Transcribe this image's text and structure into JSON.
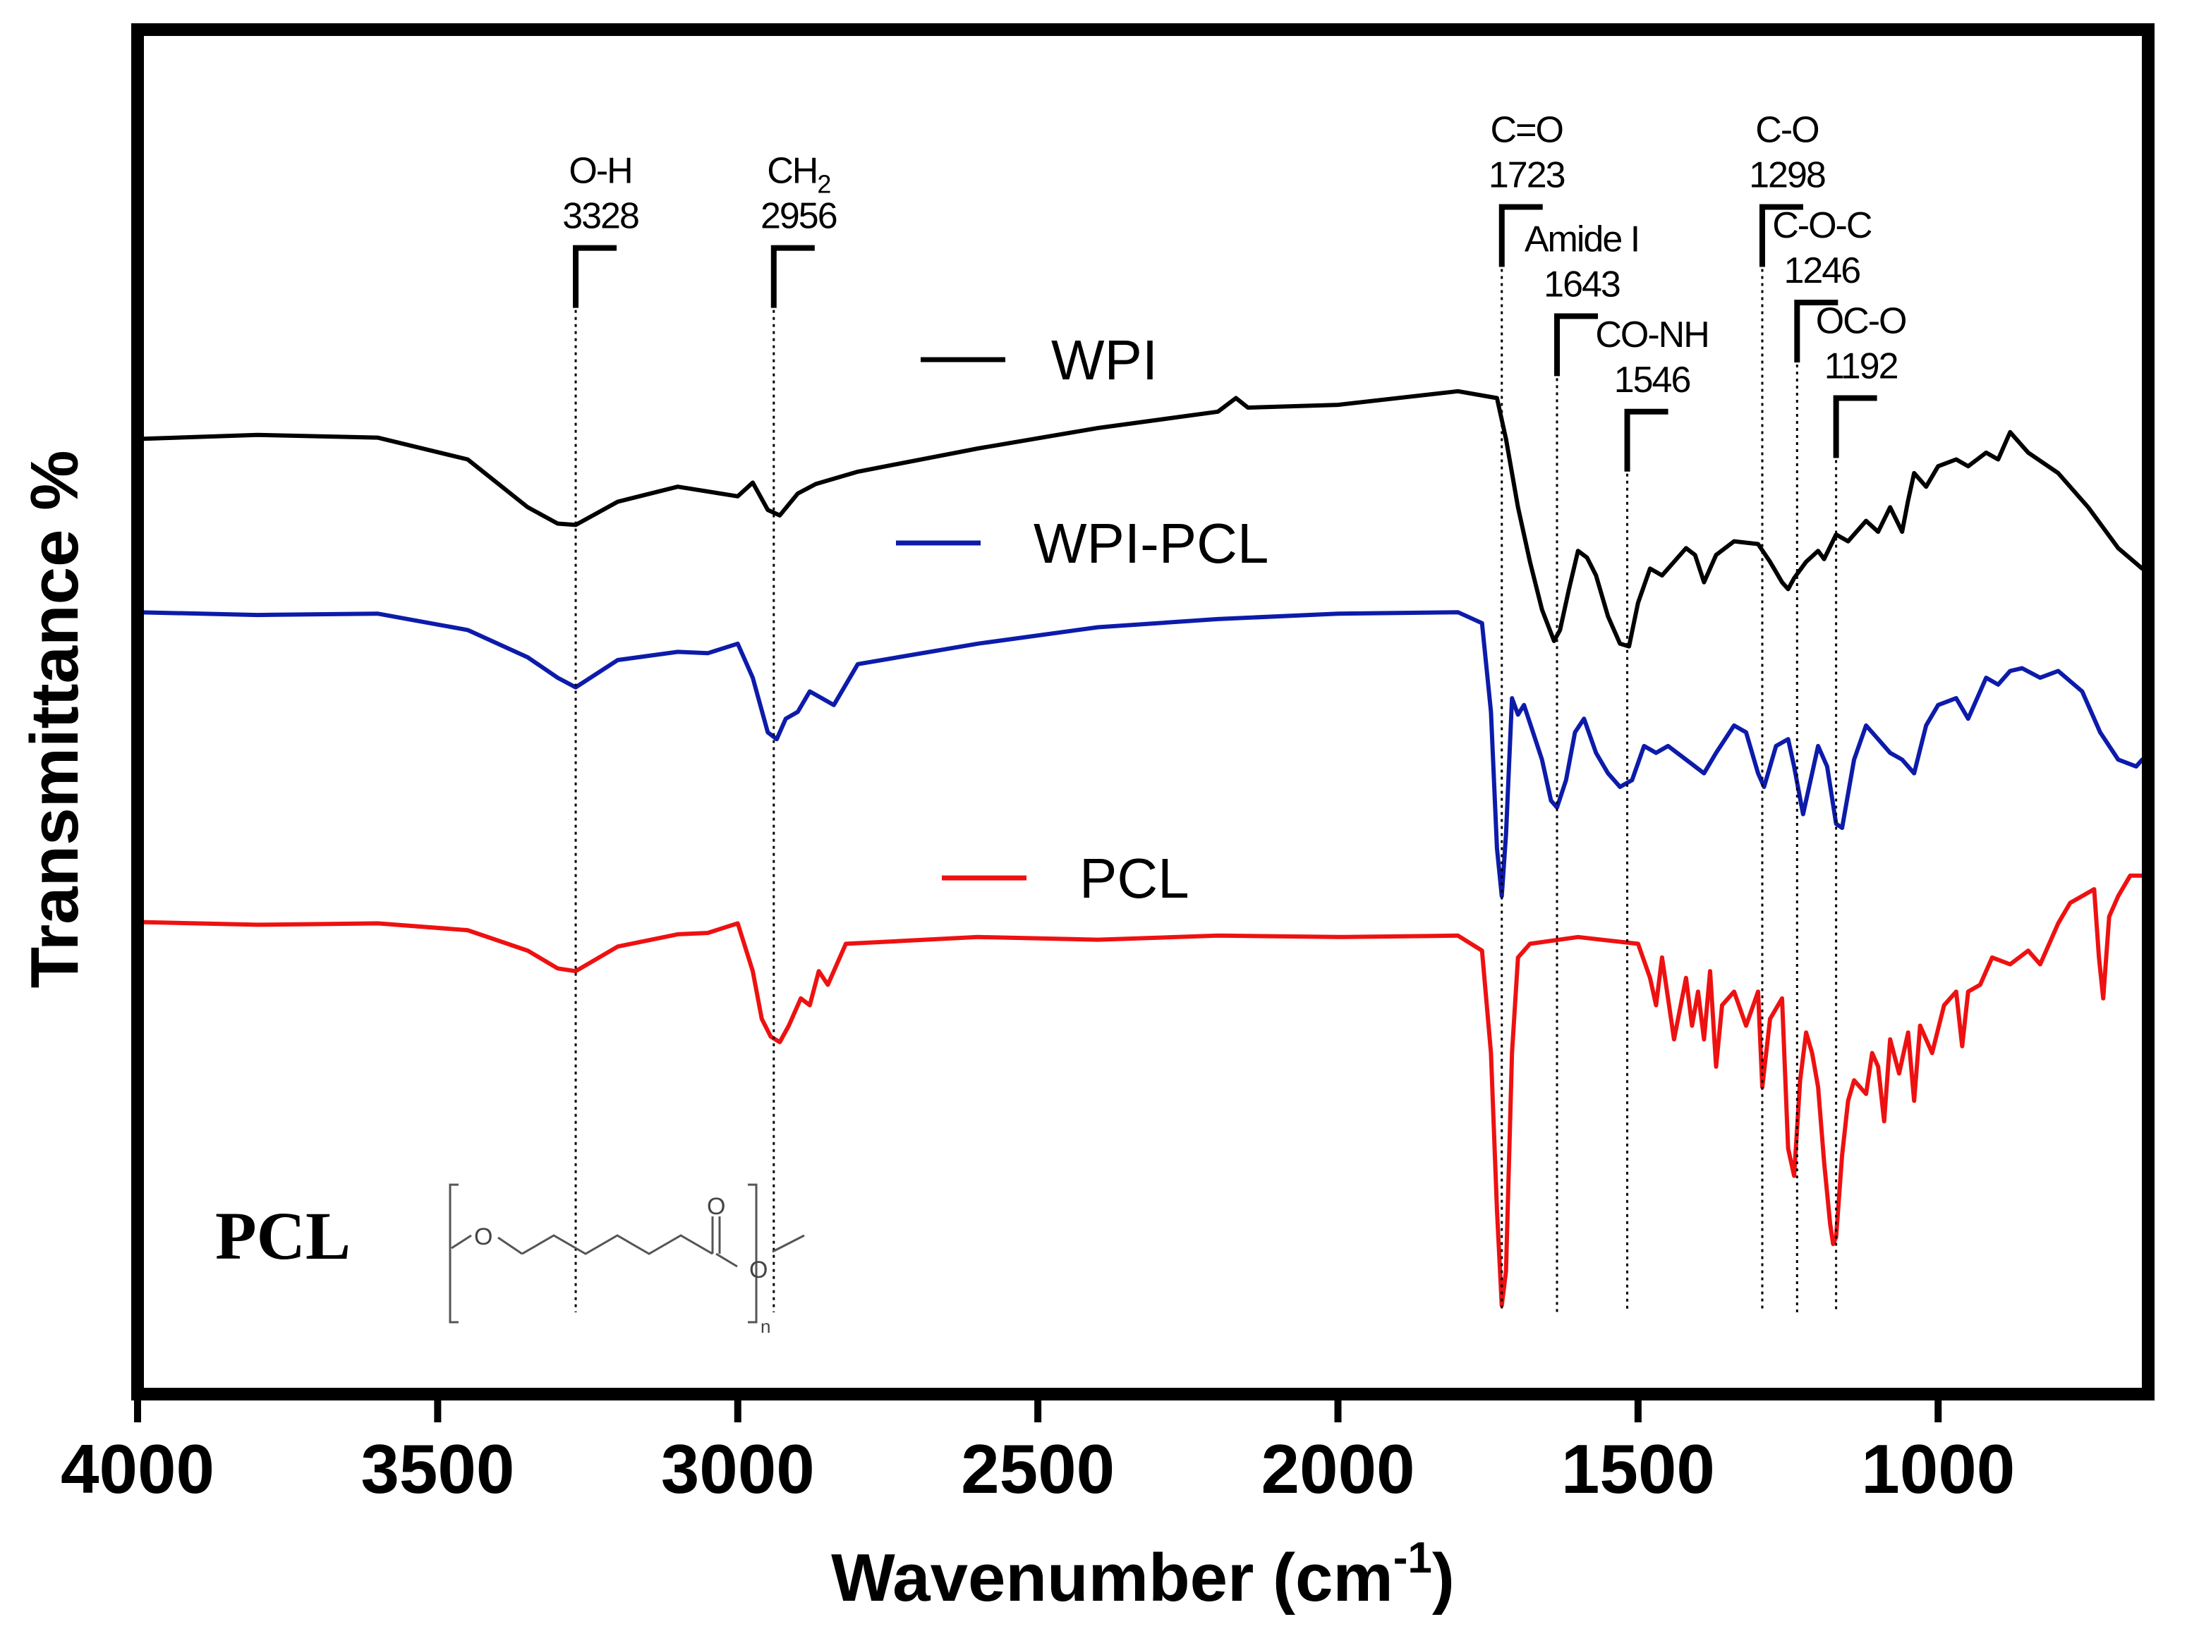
{
  "chart_data": {
    "type": "line",
    "xlabel": "Wavenumber (cm",
    "xlabel_sup": "-1",
    "xlabel_close": ")",
    "ylabel": "Transmittance %",
    "xlim": [
      4000,
      650
    ],
    "x_reversed": true,
    "ylim": [
      0,
      100
    ],
    "yticks_shown": false,
    "xticks": [
      {
        "value": 4000,
        "label": "4000"
      },
      {
        "value": 3500,
        "label": "3500"
      },
      {
        "value": 3000,
        "label": "3000"
      },
      {
        "value": 2500,
        "label": "2500"
      },
      {
        "value": 2000,
        "label": "2000"
      },
      {
        "value": 1500,
        "label": "1500"
      },
      {
        "value": 1000,
        "label": "1000"
      }
    ],
    "series": [
      {
        "name": "WPI",
        "color": "#000000",
        "x": [
          4000,
          3800,
          3600,
          3450,
          3350,
          3300,
          3270,
          3200,
          3100,
          3000,
          2975,
          2950,
          2930,
          2900,
          2870,
          2800,
          2600,
          2400,
          2200,
          2170,
          2150,
          2000,
          1800,
          1735,
          1720,
          1700,
          1680,
          1660,
          1640,
          1630,
          1615,
          1600,
          1585,
          1570,
          1550,
          1530,
          1515,
          1500,
          1480,
          1460,
          1440,
          1420,
          1405,
          1390,
          1370,
          1340,
          1300,
          1280,
          1260,
          1250,
          1240,
          1220,
          1200,
          1190,
          1170,
          1150,
          1120,
          1100,
          1080,
          1060,
          1050,
          1040,
          1020,
          1000,
          970,
          950,
          920,
          900,
          880,
          870,
          850,
          800,
          750,
          700,
          660
        ],
        "y": [
          70.0,
          70.3,
          70.1,
          68.5,
          65.0,
          63.8,
          63.7,
          65.4,
          66.5,
          65.8,
          66.8,
          64.8,
          64.4,
          66.0,
          66.7,
          67.6,
          69.3,
          70.8,
          72.0,
          73.0,
          72.3,
          72.5,
          73.5,
          73.0,
          70.0,
          65.0,
          61.0,
          57.5,
          55.2,
          56.0,
          59.0,
          61.8,
          61.3,
          60.0,
          57.0,
          55.0,
          54.8,
          58.0,
          60.5,
          60.0,
          61.0,
          62.0,
          61.5,
          59.5,
          61.5,
          62.5,
          62.3,
          61.0,
          59.5,
          59.0,
          59.8,
          61.0,
          61.8,
          61.2,
          63.0,
          62.5,
          64.0,
          63.2,
          65.0,
          63.2,
          65.5,
          67.5,
          66.5,
          68.0,
          68.5,
          68.0,
          69.0,
          68.5,
          70.5,
          70.0,
          69.0,
          67.5,
          65.0,
          62.0,
          60.5
        ]
      },
      {
        "name": "WPI-PCL",
        "color": "#0d1baa",
        "x": [
          4000,
          3800,
          3600,
          3450,
          3350,
          3300,
          3270,
          3200,
          3100,
          3050,
          3000,
          2975,
          2950,
          2935,
          2920,
          2900,
          2880,
          2860,
          2840,
          2800,
          2600,
          2400,
          2200,
          2000,
          1800,
          1760,
          1745,
          1735,
          1727,
          1720,
          1710,
          1700,
          1690,
          1675,
          1660,
          1645,
          1635,
          1620,
          1605,
          1590,
          1570,
          1550,
          1530,
          1510,
          1490,
          1470,
          1450,
          1420,
          1390,
          1370,
          1340,
          1320,
          1300,
          1290,
          1270,
          1250,
          1240,
          1225,
          1210,
          1200,
          1185,
          1170,
          1160,
          1140,
          1120,
          1100,
          1080,
          1060,
          1040,
          1020,
          1000,
          970,
          950,
          920,
          900,
          880,
          860,
          830,
          800,
          760,
          730,
          700,
          670,
          660
        ],
        "y": [
          57.3,
          57.1,
          57.2,
          56.0,
          54.0,
          52.5,
          51.8,
          53.8,
          54.4,
          54.3,
          55.0,
          52.5,
          48.5,
          48.0,
          49.5,
          50.0,
          51.5,
          51.0,
          50.5,
          53.5,
          55.0,
          56.2,
          56.8,
          57.2,
          57.3,
          56.5,
          50.0,
          40.0,
          36.5,
          41.0,
          51.0,
          49.8,
          50.5,
          48.5,
          46.5,
          43.5,
          43.0,
          45.0,
          48.5,
          49.5,
          47.0,
          45.5,
          44.5,
          45.0,
          47.5,
          47.0,
          47.5,
          46.5,
          45.5,
          47.0,
          49.0,
          48.5,
          45.5,
          44.5,
          47.5,
          48.0,
          46.0,
          42.5,
          45.5,
          47.5,
          46.0,
          41.8,
          41.5,
          46.5,
          49.0,
          48.0,
          47.0,
          46.5,
          45.5,
          49.0,
          50.5,
          51.0,
          49.5,
          52.5,
          52.0,
          53.0,
          53.2,
          52.5,
          53.0,
          51.5,
          48.5,
          46.5,
          46.0,
          46.5
        ]
      },
      {
        "name": "PCL",
        "color": "#ee1111",
        "x": [
          4000,
          3800,
          3600,
          3450,
          3350,
          3300,
          3270,
          3200,
          3100,
          3050,
          3000,
          2975,
          2960,
          2945,
          2930,
          2915,
          2895,
          2880,
          2865,
          2850,
          2820,
          2600,
          2400,
          2200,
          2000,
          1800,
          1760,
          1745,
          1735,
          1727,
          1720,
          1710,
          1700,
          1680,
          1600,
          1500,
          1480,
          1470,
          1460,
          1440,
          1420,
          1410,
          1400,
          1390,
          1380,
          1370,
          1360,
          1340,
          1320,
          1300,
          1293,
          1280,
          1260,
          1250,
          1240,
          1230,
          1220,
          1210,
          1200,
          1190,
          1180,
          1175,
          1170,
          1160,
          1150,
          1140,
          1120,
          1110,
          1100,
          1090,
          1080,
          1065,
          1050,
          1040,
          1030,
          1010,
          990,
          970,
          960,
          950,
          930,
          910,
          880,
          850,
          830,
          800,
          780,
          740,
          732,
          725,
          715,
          700,
          680,
          660
        ],
        "y": [
          34.6,
          34.4,
          34.5,
          34.0,
          32.5,
          31.2,
          31.0,
          32.8,
          33.7,
          33.8,
          34.5,
          31.0,
          27.5,
          26.2,
          25.8,
          27.0,
          29.0,
          28.5,
          31.0,
          30.0,
          33.0,
          33.5,
          33.3,
          33.6,
          33.5,
          33.6,
          32.5,
          25.0,
          13.5,
          6.5,
          9.0,
          25.0,
          32.0,
          33.0,
          33.5,
          33.0,
          30.5,
          28.5,
          32.0,
          26.0,
          30.5,
          27.0,
          29.5,
          26.0,
          31.0,
          24.0,
          28.5,
          29.5,
          27.0,
          29.5,
          22.5,
          27.5,
          29.0,
          18.0,
          16.0,
          23.0,
          26.5,
          25.0,
          22.5,
          17.0,
          12.5,
          11.0,
          11.5,
          17.5,
          21.5,
          23.0,
          22.0,
          25.0,
          24.0,
          20.0,
          26.0,
          23.5,
          26.5,
          21.5,
          27.0,
          25.0,
          28.5,
          29.5,
          25.5,
          29.5,
          30.0,
          32.0,
          31.5,
          32.5,
          31.5,
          34.5,
          36.0,
          37.0,
          32.0,
          29.0,
          35.0,
          36.5,
          38.0,
          38.0
        ]
      }
    ],
    "legend": [
      {
        "label": "WPI",
        "color": "#000000"
      },
      {
        "label": "WPI-PCL",
        "color": "#0d1baa"
      },
      {
        "label": "PCL",
        "color": "#ee1111"
      }
    ],
    "annotations": [
      {
        "group": "O-H",
        "value": "3328",
        "group_sub": "",
        "x": 3270,
        "ytop": 84
      },
      {
        "group": "CH",
        "value": "2956",
        "group_sub": "2",
        "x": 2940,
        "ytop": 84
      },
      {
        "group": "C=O",
        "value": "1723",
        "group_sub": "",
        "x": 1727,
        "ytop": 87
      },
      {
        "group": "Amide I",
        "value": "1643",
        "group_sub": "",
        "x": 1635,
        "ytop": 79
      },
      {
        "group": "CO-NH",
        "value": "1546",
        "group_sub": "",
        "x": 1518,
        "ytop": 72
      },
      {
        "group": "C-O",
        "value": "1298",
        "group_sub": "",
        "x": 1293,
        "ytop": 87
      },
      {
        "group": "C-O-C",
        "value": "1246",
        "group_sub": "",
        "x": 1235,
        "ytop": 80
      },
      {
        "group": "OC-O",
        "value": "1192",
        "group_sub": "",
        "x": 1170,
        "ytop": 73
      }
    ],
    "inset": {
      "name": "PCL",
      "atom_o1": "O",
      "atom_o2": "O",
      "atom_o3": "O",
      "subscript": "n"
    }
  }
}
